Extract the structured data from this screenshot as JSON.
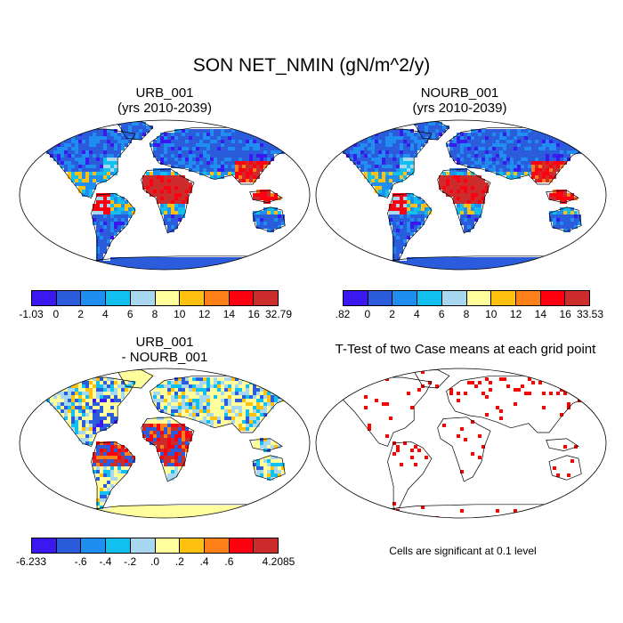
{
  "title": "SON NET_NMIN (gN/m^2/y)",
  "colors": {
    "scale": [
      "#3a18f0",
      "#2b5cdc",
      "#1f8ef0",
      "#12c0f0",
      "#a8d8f0",
      "#fefe9c",
      "#ffc010",
      "#ff8018",
      "#ff0010",
      "#cc2c2c"
    ],
    "land_fill_diff": "#fefe9c",
    "signif": "#ff0000",
    "coast": "#000000"
  },
  "panels": [
    {
      "id": "urb",
      "title": "URB_001\n(yrs 2010-2039)",
      "colorbar_labels": [
        "-1.03",
        "0",
        "2",
        "4",
        "6",
        "8",
        "10",
        "12",
        "14",
        "16",
        "32.79"
      ]
    },
    {
      "id": "nourb",
      "title": "NOURB_001\n(yrs 2010-2039)",
      "colorbar_labels": [
        ".82",
        "0",
        "2",
        "4",
        "6",
        "8",
        "10",
        "12",
        "14",
        "16",
        "33.53"
      ]
    },
    {
      "id": "diff",
      "title": "URB_001\n- NOURB_001",
      "colorbar_labels": [
        "-6.233",
        "",
        "-.6",
        "-.4",
        "-.2",
        ".0",
        ".2",
        ".4",
        ".6",
        "",
        "4.2085"
      ]
    },
    {
      "id": "ttest",
      "title": "T-Test of two Case means at each grid point"
    }
  ],
  "note": "Cells are significant at 0.1 level"
}
